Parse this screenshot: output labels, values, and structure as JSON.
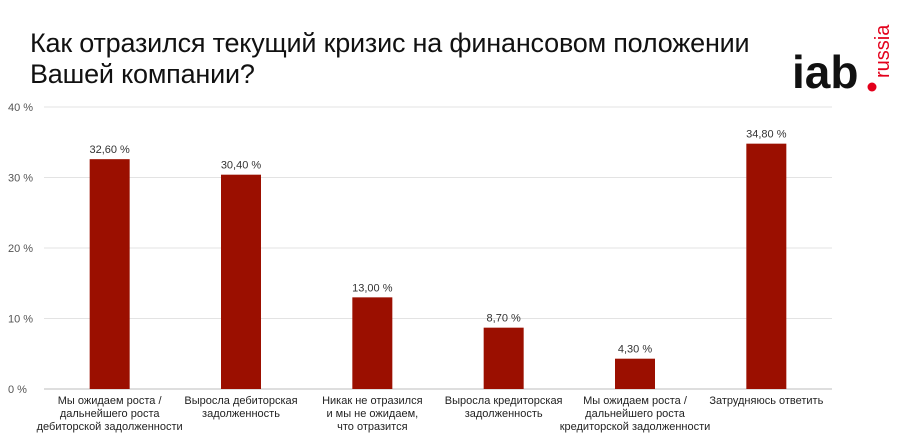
{
  "header": {
    "title_line1": "Как отразился текущий кризис на финансовом положении",
    "title_line2": "Вашей компании?"
  },
  "logo": {
    "main": "iab",
    "vertical": "russia",
    "dot_color": "#e3001b",
    "text_color": "#111111"
  },
  "chart_data": {
    "type": "bar",
    "categories": [
      [
        "Мы ожидаем роста /",
        "дальнейшего роста",
        "дебиторской задолженности"
      ],
      [
        "Выросла дебиторская",
        "задолженность"
      ],
      [
        "Никак не отразился",
        "и мы не ожидаем,",
        "что отразится"
      ],
      [
        "Выросла кредиторская",
        "задолженность"
      ],
      [
        "Мы ожидаем роста /",
        "дальнейшего роста",
        "кредиторской задолженности"
      ],
      [
        "Затрудняюсь ответить"
      ]
    ],
    "values": [
      32.6,
      30.4,
      13.0,
      8.7,
      4.3,
      34.8
    ],
    "value_labels": [
      "32,60 %",
      "30,40 %",
      "13,00 %",
      "8,70 %",
      "4,30 %",
      "34,80 %"
    ],
    "yticks": [
      0,
      10,
      20,
      30,
      40
    ],
    "ytick_labels": [
      "0 %",
      "10 %",
      "20 %",
      "30 %",
      "40 %"
    ],
    "ylim": [
      0,
      40
    ],
    "grid": true,
    "bar_color": "#9b0f00"
  }
}
